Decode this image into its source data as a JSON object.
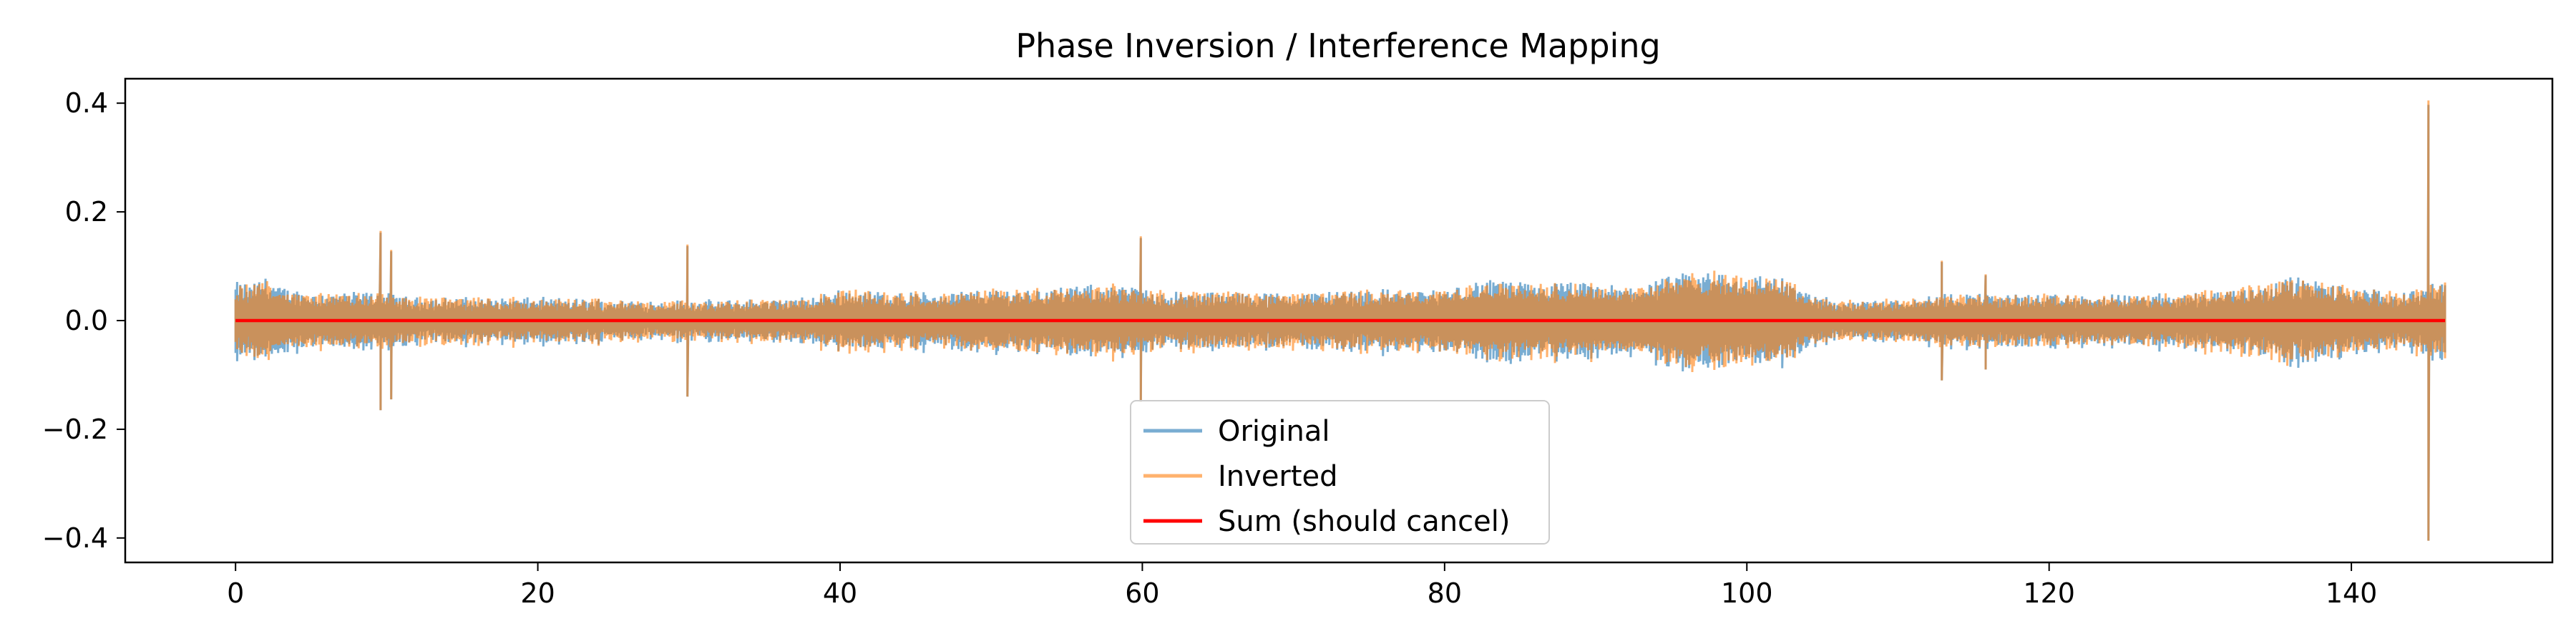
{
  "chart_data": {
    "type": "line",
    "title": "Phase Inversion / Interference Mapping",
    "xlabel": "",
    "ylabel": "",
    "xlim": [
      -7.3,
      153.3
    ],
    "ylim": [
      -0.445,
      0.445
    ],
    "x_ticks": [
      {
        "value": 0,
        "label": "0"
      },
      {
        "value": 20,
        "label": "20"
      },
      {
        "value": 40,
        "label": "40"
      },
      {
        "value": 60,
        "label": "60"
      },
      {
        "value": 80,
        "label": "80"
      },
      {
        "value": 100,
        "label": "100"
      },
      {
        "value": 120,
        "label": "120"
      },
      {
        "value": 140,
        "label": "140"
      }
    ],
    "y_ticks": [
      {
        "value": -0.4,
        "label": "−0.4"
      },
      {
        "value": -0.2,
        "label": "−0.2"
      },
      {
        "value": 0.0,
        "label": "0.0"
      },
      {
        "value": 0.2,
        "label": "0.2"
      },
      {
        "value": 0.4,
        "label": "0.4"
      }
    ],
    "grid": false,
    "legend": {
      "position": "lower-center"
    },
    "x_range": [
      0,
      146.2
    ],
    "envelope": [
      [
        0,
        0.07
      ],
      [
        1,
        0.065
      ],
      [
        2,
        0.08
      ],
      [
        3,
        0.06
      ],
      [
        5,
        0.05
      ],
      [
        8,
        0.05
      ],
      [
        9.5,
        0.05
      ],
      [
        12,
        0.04
      ],
      [
        20,
        0.04
      ],
      [
        28,
        0.035
      ],
      [
        32,
        0.035
      ],
      [
        38,
        0.04
      ],
      [
        40,
        0.055
      ],
      [
        45,
        0.05
      ],
      [
        50,
        0.055
      ],
      [
        55,
        0.06
      ],
      [
        58,
        0.065
      ],
      [
        62,
        0.05
      ],
      [
        70,
        0.05
      ],
      [
        75,
        0.055
      ],
      [
        80,
        0.055
      ],
      [
        83,
        0.075
      ],
      [
        86,
        0.065
      ],
      [
        88,
        0.07
      ],
      [
        92,
        0.06
      ],
      [
        96,
        0.085
      ],
      [
        98,
        0.09
      ],
      [
        100,
        0.08
      ],
      [
        102,
        0.085
      ],
      [
        104,
        0.05
      ],
      [
        106,
        0.035
      ],
      [
        110,
        0.04
      ],
      [
        115,
        0.05
      ],
      [
        120,
        0.045
      ],
      [
        125,
        0.045
      ],
      [
        130,
        0.05
      ],
      [
        134,
        0.065
      ],
      [
        136,
        0.08
      ],
      [
        138,
        0.07
      ],
      [
        140,
        0.06
      ],
      [
        143,
        0.05
      ],
      [
        145,
        0.06
      ],
      [
        146.2,
        0.07
      ]
    ],
    "spikes": [
      {
        "x": 9.6,
        "pos": 0.165,
        "neg": -0.165
      },
      {
        "x": 10.3,
        "pos": 0.13,
        "neg": -0.145
      },
      {
        "x": 29.9,
        "pos": 0.14,
        "neg": -0.14
      },
      {
        "x": 59.9,
        "pos": 0.155,
        "neg": -0.15
      },
      {
        "x": 112.9,
        "pos": 0.11,
        "neg": -0.11
      },
      {
        "x": 115.8,
        "pos": 0.085,
        "neg": -0.09
      },
      {
        "x": 145.1,
        "pos": 0.405,
        "neg": -0.405
      }
    ],
    "series": [
      {
        "name": "Original",
        "color": "#1f77b4",
        "opacity": 0.6
      },
      {
        "name": "Inverted",
        "color": "#ff7f0e",
        "opacity": 0.6
      },
      {
        "name": "Sum (should cancel)",
        "color": "#ff0000",
        "opacity": 1.0,
        "constant": 0.0
      }
    ]
  }
}
